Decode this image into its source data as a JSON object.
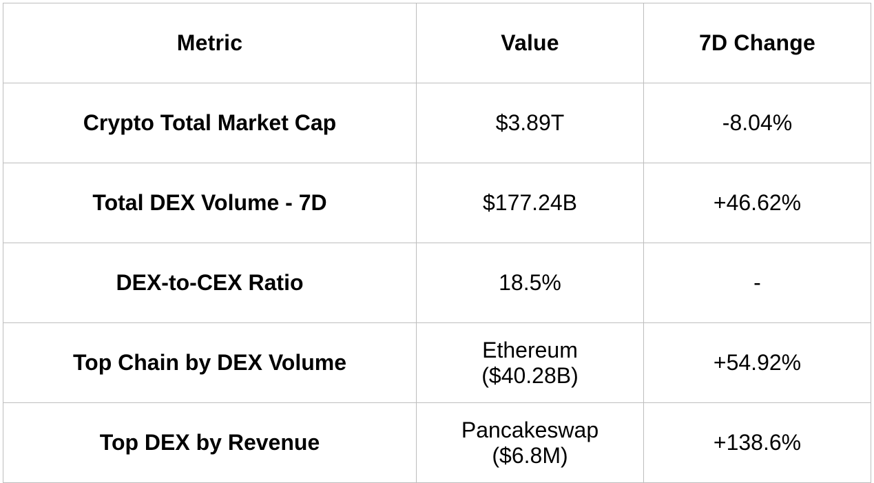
{
  "table": {
    "headers": [
      "Metric",
      "Value",
      "7D Change"
    ],
    "rows": [
      {
        "metric": "Crypto Total Market Cap",
        "value": [
          "$3.89T"
        ],
        "change": "-8.04%"
      },
      {
        "metric": "Total DEX Volume - 7D",
        "value": [
          "$177.24B"
        ],
        "change": "+46.62%"
      },
      {
        "metric": "DEX-to-CEX Ratio",
        "value": [
          "18.5%"
        ],
        "change": "-"
      },
      {
        "metric": "Top Chain by DEX Volume",
        "value": [
          "Ethereum",
          "($40.28B)"
        ],
        "change": "+54.92%"
      },
      {
        "metric": "Top DEX by Revenue",
        "value": [
          "Pancakeswap",
          "($6.8M)"
        ],
        "change": "+138.6%"
      }
    ]
  },
  "colors": {
    "border": "#bdbdbd",
    "text": "#000000",
    "background": "#ffffff"
  }
}
